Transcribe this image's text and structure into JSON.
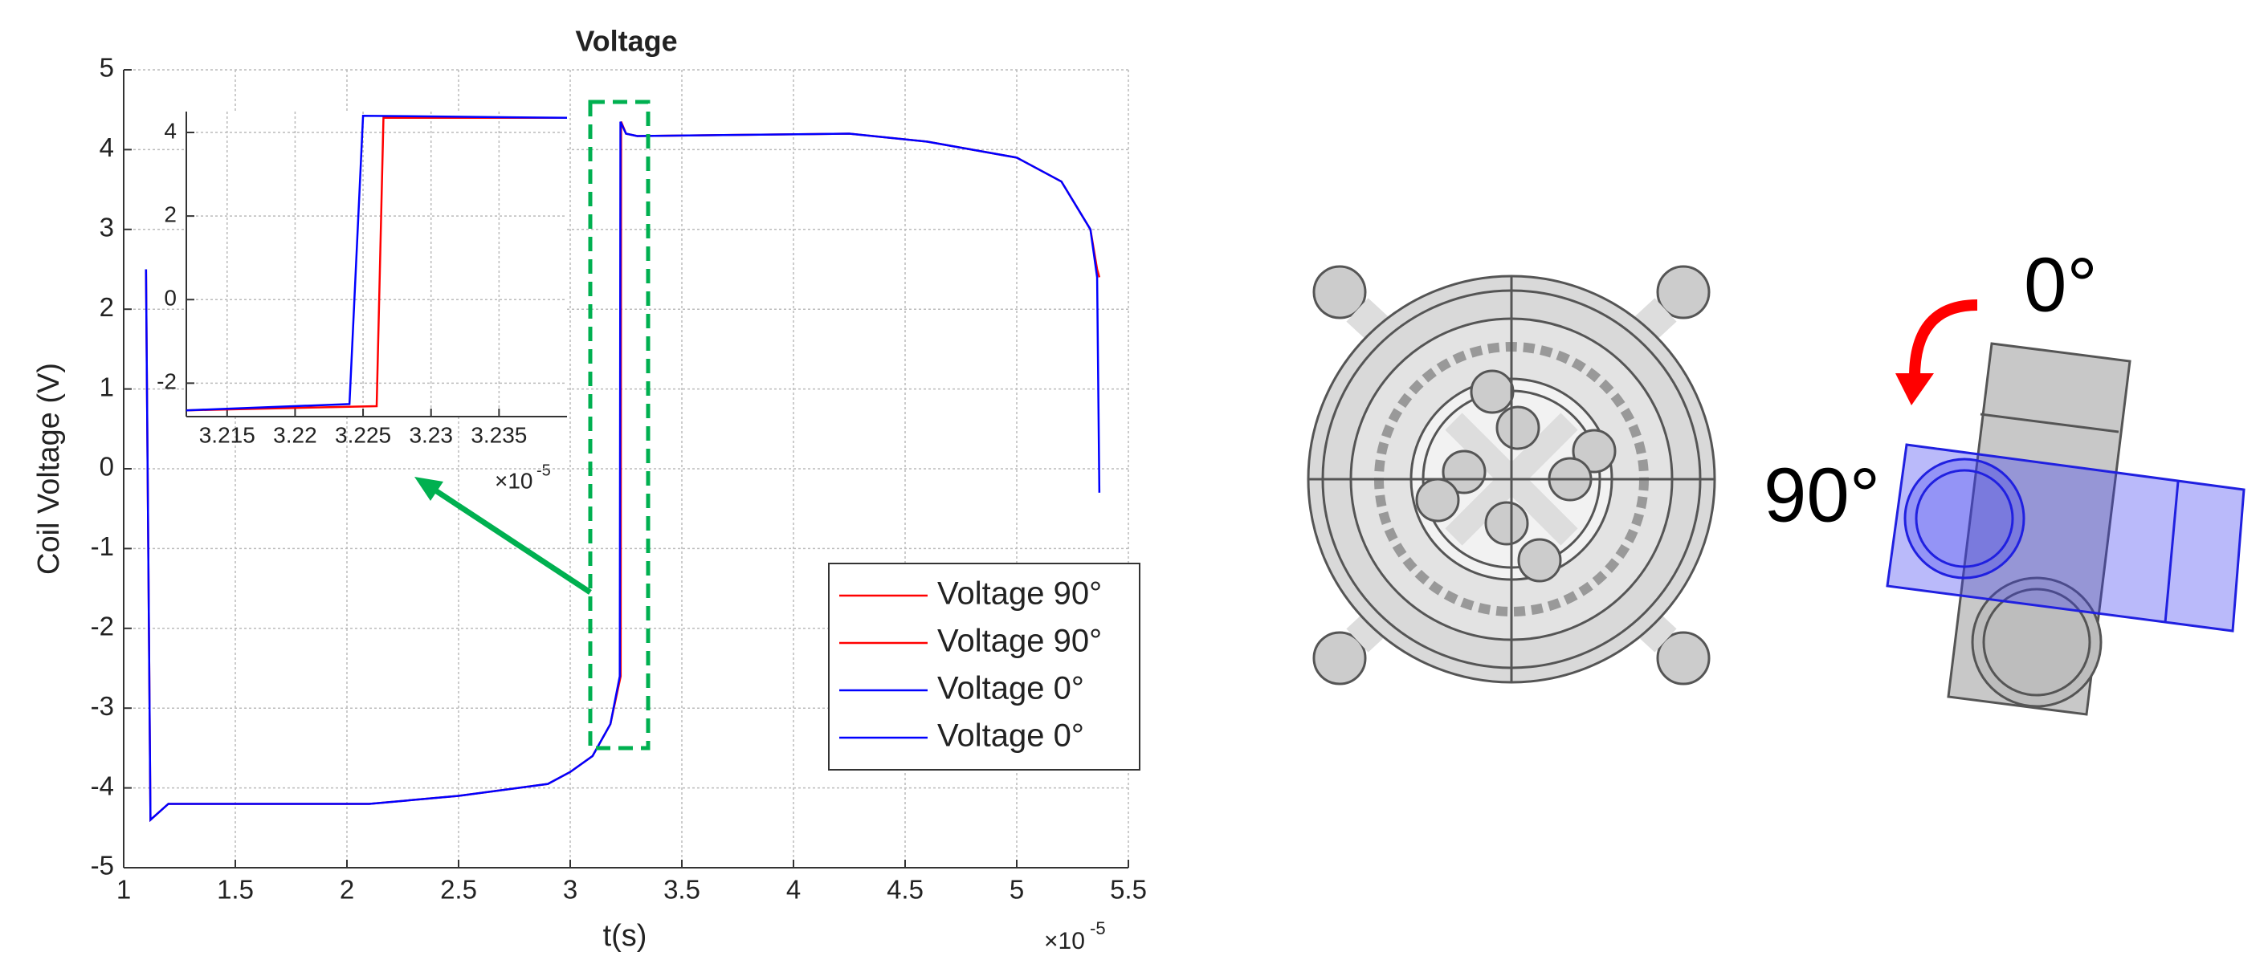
{
  "chart_data": [
    {
      "type": "line",
      "title": "Voltage",
      "x_label": "t(s)",
      "y_label": "Coil Voltage (V)",
      "x_multiplier": "×10",
      "x_multiplier_exp": "-5",
      "xlim": [
        1,
        5.5
      ],
      "xticks": [
        1,
        1.5,
        2,
        2.5,
        3,
        3.5,
        4,
        4.5,
        5,
        5.5
      ],
      "ylim": [
        -5,
        5
      ],
      "yticks": [
        -5,
        -4,
        -3,
        -2,
        -1,
        0,
        1,
        2,
        3,
        4,
        5
      ],
      "grid": true,
      "legend": "lower right",
      "series": [
        {
          "name": "Voltage 90°",
          "color": "#ff0000",
          "x": [
            1.1,
            1.12,
            1.2,
            2.1,
            2.5,
            2.9,
            3.0,
            3.1,
            3.18,
            3.226,
            3.228,
            3.25,
            3.3,
            4.25,
            4.6,
            5.0,
            5.2,
            5.33,
            5.36,
            5.37
          ],
          "values": [
            2.5,
            -4.4,
            -4.2,
            -4.2,
            -4.1,
            -3.95,
            -3.8,
            -3.6,
            -3.2,
            -2.6,
            4.35,
            4.2,
            4.17,
            4.2,
            4.1,
            3.9,
            3.6,
            3.0,
            2.5,
            2.4
          ]
        },
        {
          "name": "Voltage 0°",
          "color": "#0000ff",
          "x": [
            1.1,
            1.12,
            1.2,
            2.1,
            2.5,
            2.9,
            3.0,
            3.1,
            3.18,
            3.222,
            3.225,
            3.25,
            3.3,
            4.25,
            4.6,
            5.0,
            5.2,
            5.33,
            5.36,
            5.37
          ],
          "values": [
            2.5,
            -4.4,
            -4.2,
            -4.2,
            -4.1,
            -3.95,
            -3.8,
            -3.6,
            -3.2,
            -2.6,
            4.35,
            4.2,
            4.17,
            4.2,
            4.1,
            3.9,
            3.6,
            3.0,
            2.4,
            -0.3
          ]
        }
      ]
    },
    {
      "type": "line",
      "x_multiplier": "×10",
      "x_multiplier_exp": "-5",
      "xlim": [
        3.212,
        3.24
      ],
      "xticks": [
        3.215,
        3.22,
        3.225,
        3.23,
        3.235
      ],
      "ylim": [
        -2.8,
        4.5
      ],
      "yticks": [
        -2,
        0,
        2,
        4
      ],
      "grid": true,
      "series": [
        {
          "name": "Voltage 90°",
          "color": "#ff0000",
          "x": [
            3.212,
            3.226,
            3.2265,
            3.24
          ],
          "values": [
            -2.65,
            -2.55,
            4.35,
            4.35
          ]
        },
        {
          "name": "Voltage 0°",
          "color": "#0000ff",
          "x": [
            3.212,
            3.224,
            3.225,
            3.24
          ],
          "values": [
            -2.65,
            -2.5,
            4.4,
            4.35
          ]
        }
      ]
    }
  ],
  "diagram": {
    "label_0": "0°",
    "label_90": "90°"
  }
}
